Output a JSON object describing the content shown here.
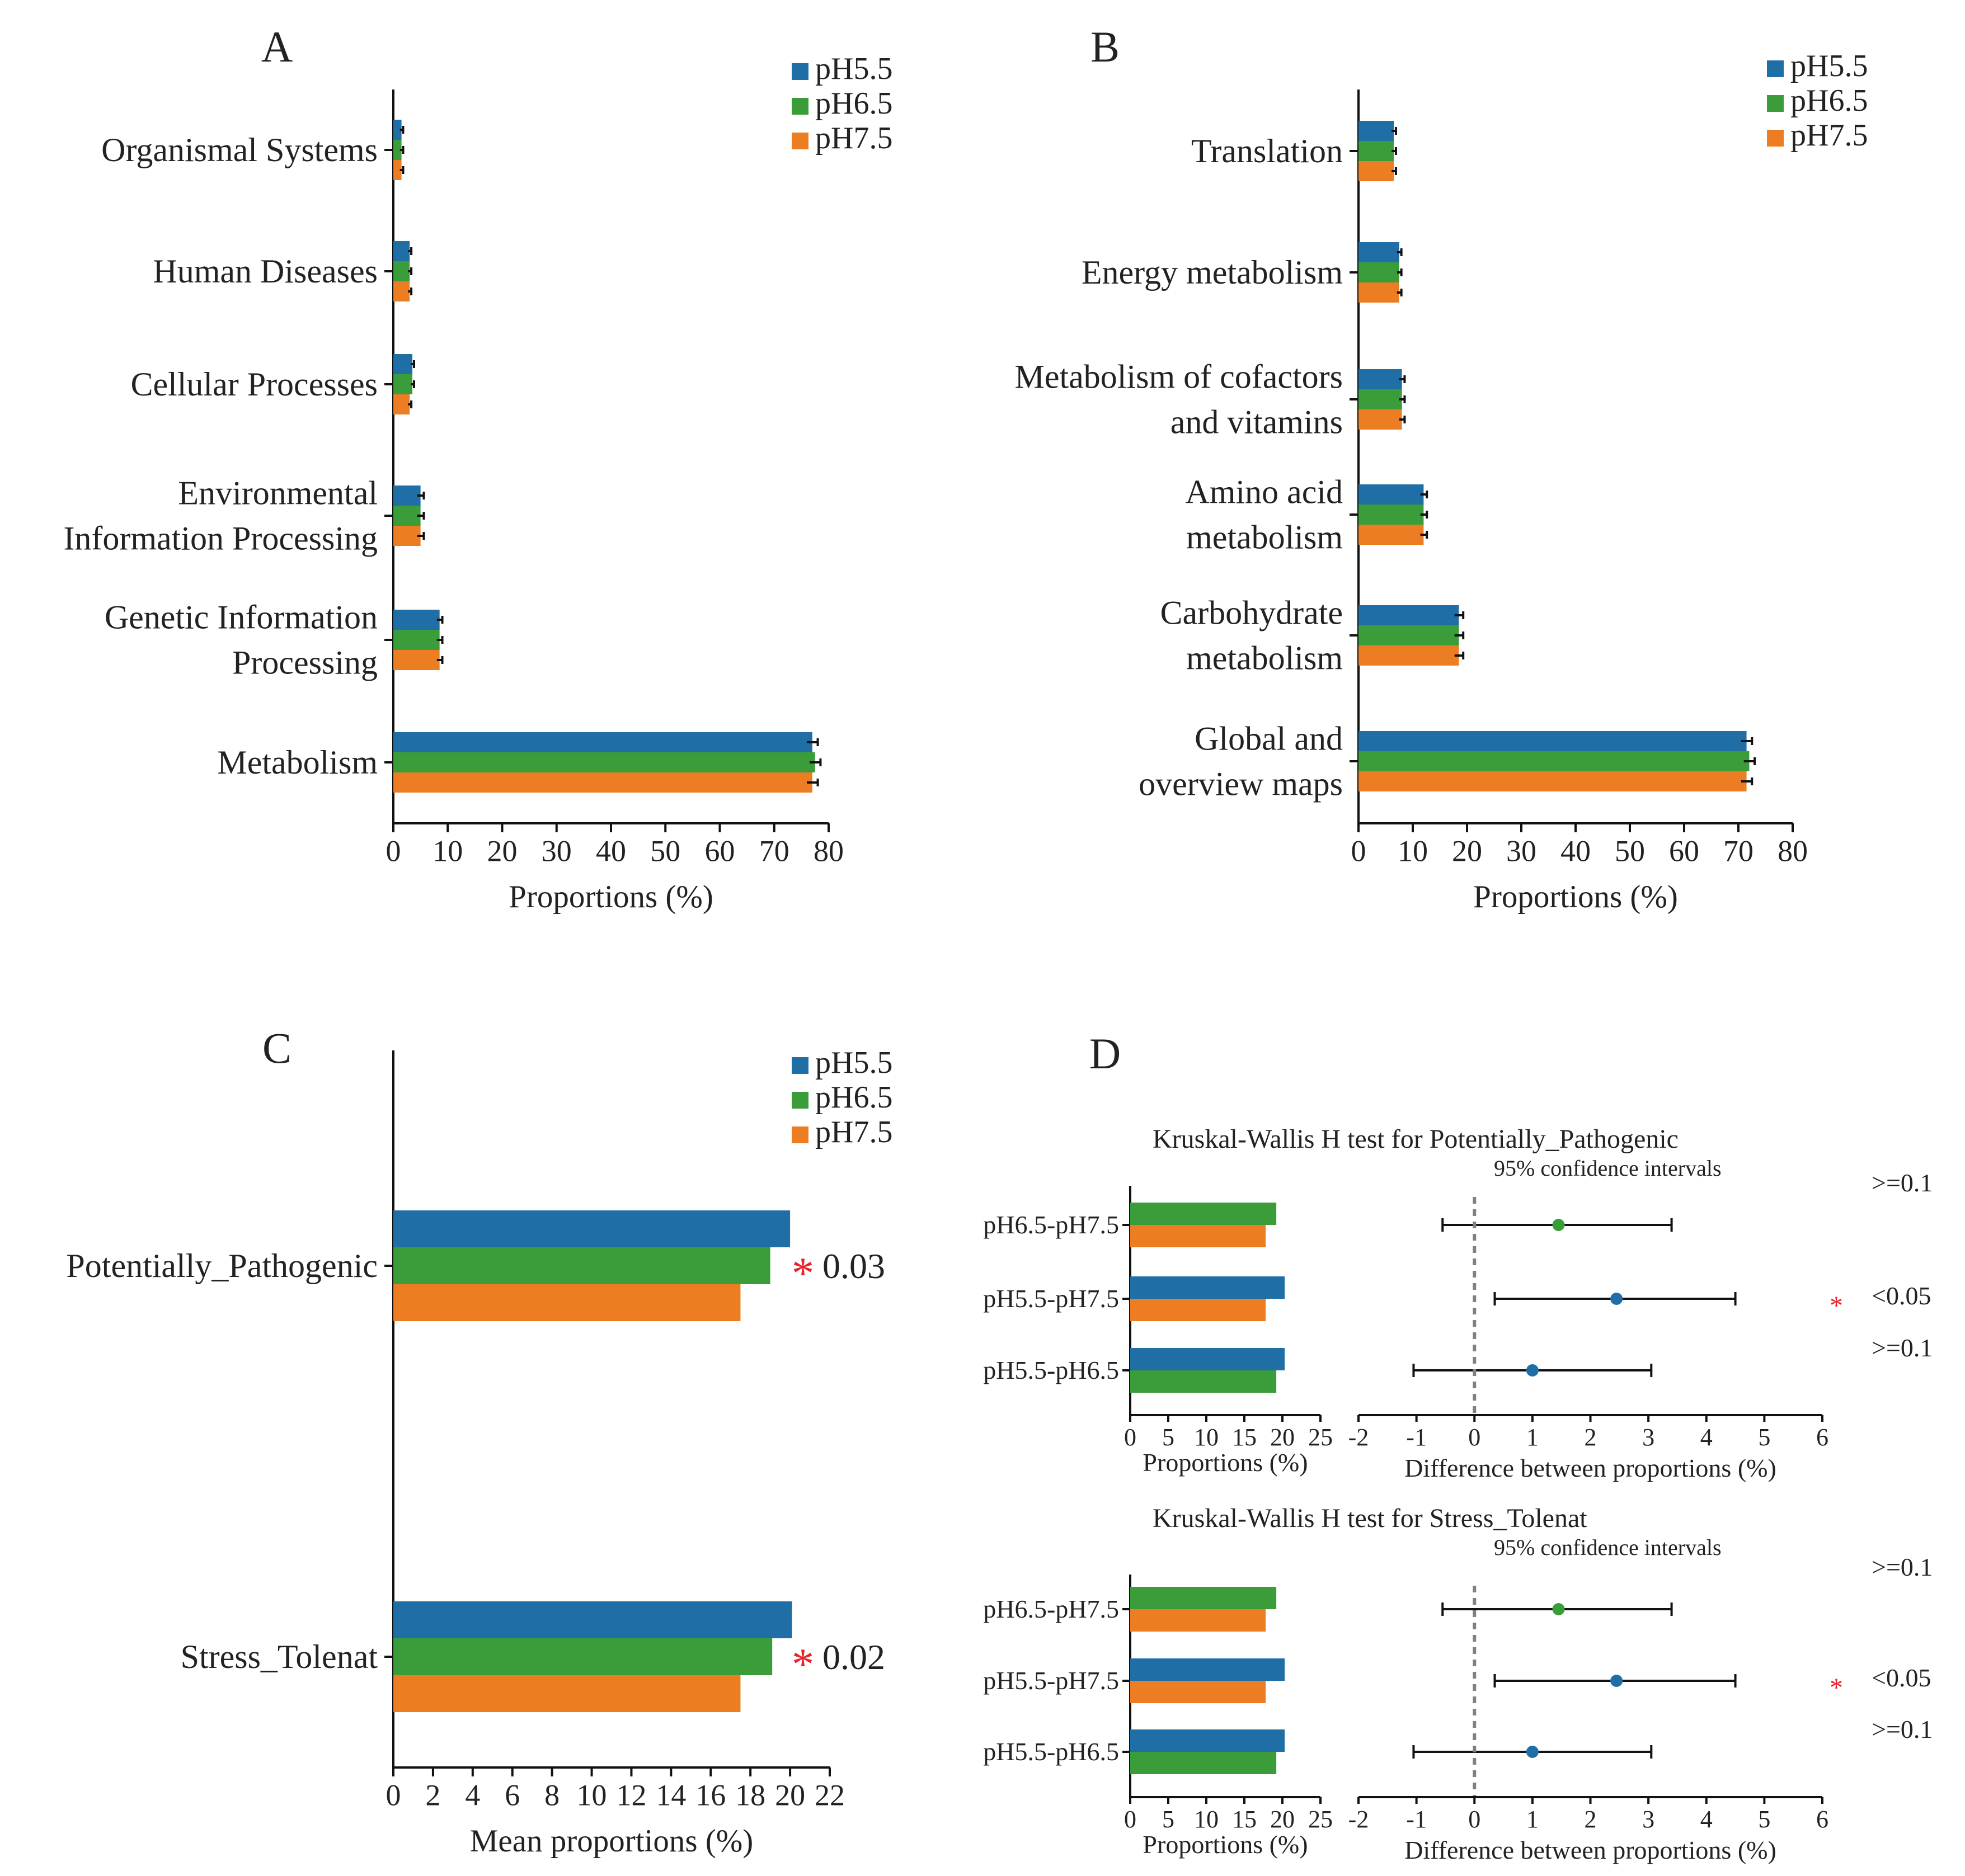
{
  "colors": {
    "pH5.5": "#1f6fa6",
    "pH6.5": "#3a9d3a",
    "pH7.5": "#ec7d22",
    "axis": "#111111",
    "star": "#e8222a",
    "zero_line": "#808080"
  },
  "legend": [
    "pH5.5",
    "pH6.5",
    "pH7.5"
  ],
  "chart_data": [
    {
      "panel": "A",
      "type": "bar",
      "orientation": "horizontal",
      "categories": [
        "Organismal Systems",
        "Human Diseases",
        "Cellular Processes",
        "Environmental Information Processing",
        "Genetic Information Processing",
        "Metabolism"
      ],
      "category_lines": [
        [
          "Organismal Systems"
        ],
        [
          "Human Diseases"
        ],
        [
          "Cellular Processes"
        ],
        [
          "Environmental",
          "Information Processing"
        ],
        [
          "Genetic Information",
          "Processing"
        ],
        [
          "Metabolism"
        ]
      ],
      "series": [
        {
          "name": "pH5.5",
          "values": [
            1.5,
            3.0,
            3.5,
            5.0,
            8.5,
            77.0
          ],
          "errors": [
            0.3,
            0.3,
            0.3,
            0.6,
            0.5,
            1.0
          ]
        },
        {
          "name": "pH6.5",
          "values": [
            1.5,
            3.0,
            3.5,
            5.0,
            8.5,
            77.5
          ],
          "errors": [
            0.3,
            0.3,
            0.3,
            0.6,
            0.5,
            1.0
          ]
        },
        {
          "name": "pH7.5",
          "values": [
            1.5,
            3.0,
            3.0,
            5.0,
            8.5,
            77.0
          ],
          "errors": [
            0.3,
            0.3,
            0.3,
            0.6,
            0.5,
            1.0
          ]
        }
      ],
      "xlim": [
        0,
        80
      ],
      "xticks": [
        "0",
        "10",
        "20",
        "30",
        "40",
        "50",
        "60",
        "70",
        "80"
      ],
      "xlabel": "Proportions (%)"
    },
    {
      "panel": "B",
      "type": "bar",
      "orientation": "horizontal",
      "categories": [
        "Translation",
        "Energy metabolism",
        "Metabolism of cofactors and vitamins",
        "Amino acid metabolism",
        "Carbohydrate metabolism",
        "Global and overview maps"
      ],
      "category_lines": [
        [
          "Translation"
        ],
        [
          "Energy metabolism"
        ],
        [
          "Metabolism of cofactors",
          "and vitamins"
        ],
        [
          "Amino acid",
          "metabolism"
        ],
        [
          "Carbohydrate",
          "metabolism"
        ],
        [
          "Global and",
          "overview maps"
        ]
      ],
      "series": [
        {
          "name": "pH5.5",
          "values": [
            6.5,
            7.5,
            8.0,
            12.0,
            18.5,
            71.5
          ],
          "errors": [
            0.4,
            0.4,
            0.5,
            0.6,
            0.8,
            1.0
          ]
        },
        {
          "name": "pH6.5",
          "values": [
            6.5,
            7.5,
            8.0,
            12.0,
            18.5,
            72.0
          ],
          "errors": [
            0.4,
            0.4,
            0.5,
            0.6,
            0.8,
            1.0
          ]
        },
        {
          "name": "pH7.5",
          "values": [
            6.5,
            7.5,
            8.0,
            12.0,
            18.5,
            71.5
          ],
          "errors": [
            0.4,
            0.4,
            0.5,
            0.6,
            0.8,
            1.0
          ]
        }
      ],
      "xlim": [
        0,
        80
      ],
      "xticks": [
        "0",
        "10",
        "20",
        "30",
        "40",
        "50",
        "60",
        "70",
        "80"
      ],
      "xlabel": "Proportions (%)"
    },
    {
      "panel": "C",
      "type": "bar",
      "orientation": "horizontal",
      "categories": [
        "Potentially_Pathogenic",
        "Stress_Tolenat"
      ],
      "series": [
        {
          "name": "pH5.5",
          "values": [
            20.0,
            20.1
          ]
        },
        {
          "name": "pH6.5",
          "values": [
            19.0,
            19.1
          ]
        },
        {
          "name": "pH7.5",
          "values": [
            17.5,
            17.5
          ]
        }
      ],
      "p_values": [
        "0.03",
        "0.02"
      ],
      "star": "*",
      "xlim": [
        0,
        22
      ],
      "xticks": [
        "0",
        "2",
        "4",
        "6",
        "8",
        "10",
        "12",
        "14",
        "16",
        "18",
        "20",
        "22"
      ],
      "xlabel": "Mean proportions (%)"
    },
    {
      "panel": "D",
      "type": "bar",
      "tests": [
        {
          "title": "Kruskal-Wallis H test  for Potentially_Pathogenic",
          "ci_label": "95% confidence intervals",
          "comparisons": [
            "pH6.5-pH7.5",
            "pH5.5-pH7.5",
            "pH5.5-pH6.5"
          ],
          "groups": [
            [
              "pH6.5",
              "pH7.5"
            ],
            [
              "pH5.5",
              "pH7.5"
            ],
            [
              "pH5.5",
              "pH6.5"
            ]
          ],
          "bar_values": [
            [
              19.2,
              17.8
            ],
            [
              20.3,
              17.8
            ],
            [
              20.3,
              19.2
            ]
          ],
          "diff": [
            1.45,
            2.45,
            1.0
          ],
          "ci_low": [
            -0.55,
            0.35,
            -1.05
          ],
          "ci_high": [
            3.4,
            4.5,
            3.05
          ],
          "point_colors": [
            "pH6.5",
            "pH5.5",
            "pH5.5"
          ],
          "p_labels": [
            ">=0.1",
            "<0.05",
            ">=0.1"
          ],
          "significant": [
            false,
            true,
            false
          ]
        },
        {
          "title": "Kruskal-Wallis H  test for Stress_Tolenat",
          "ci_label": "95% confidence intervals",
          "comparisons": [
            "pH6.5-pH7.5",
            "pH5.5-pH7.5",
            "pH5.5-pH6.5"
          ],
          "groups": [
            [
              "pH6.5",
              "pH7.5"
            ],
            [
              "pH5.5",
              "pH7.5"
            ],
            [
              "pH5.5",
              "pH6.5"
            ]
          ],
          "bar_values": [
            [
              19.2,
              17.8
            ],
            [
              20.3,
              17.8
            ],
            [
              20.3,
              19.2
            ]
          ],
          "diff": [
            1.45,
            2.45,
            1.0
          ],
          "ci_low": [
            -0.55,
            0.35,
            -1.05
          ],
          "ci_high": [
            3.4,
            4.5,
            3.05
          ],
          "point_colors": [
            "pH6.5",
            "pH5.5",
            "pH5.5"
          ],
          "p_labels": [
            ">=0.1",
            "<0.05",
            ">=0.1"
          ],
          "significant": [
            false,
            true,
            false
          ]
        }
      ],
      "bar_xlim": [
        0,
        25
      ],
      "bar_xticks": [
        "0",
        "5",
        "10",
        "15",
        "20",
        "25"
      ],
      "bar_xlabel": "Proportions (%)",
      "diff_xlim": [
        -2,
        6
      ],
      "diff_xticks": [
        "-2",
        "-1",
        "0",
        "1",
        "2",
        "3",
        "4",
        "5",
        "6"
      ],
      "diff_xlabel": "Difference between proportions (%)"
    }
  ]
}
